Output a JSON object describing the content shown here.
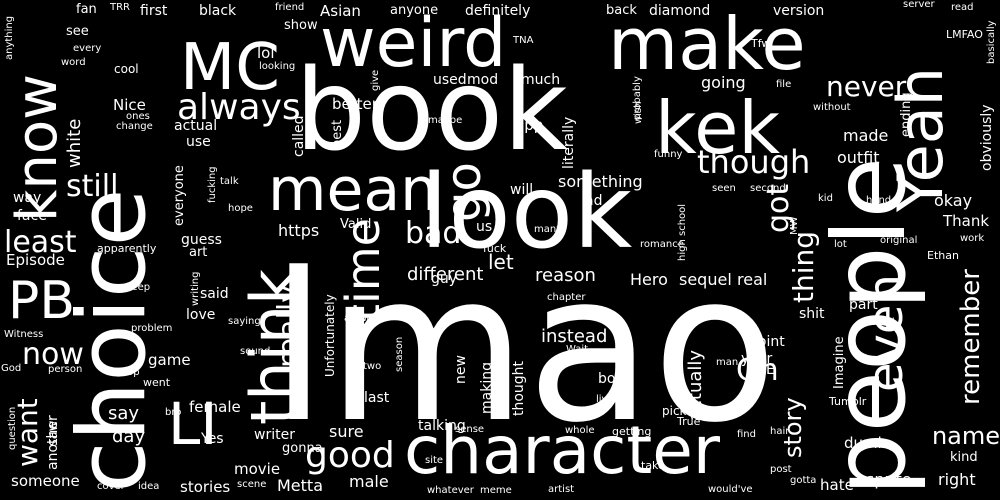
{
  "cloud": {
    "background": "#000000",
    "text_color": "#ffffff",
    "words": [
      {
        "text": "lmao"
      },
      {
        "text": "book"
      },
      {
        "text": "look"
      },
      {
        "text": "people"
      },
      {
        "text": "choice"
      },
      {
        "text": "make"
      },
      {
        "text": "weird"
      },
      {
        "text": "MC"
      },
      {
        "text": "kek"
      },
      {
        "text": "Yeah"
      },
      {
        "text": "mean"
      },
      {
        "text": "think"
      },
      {
        "text": "know"
      },
      {
        "text": "character"
      },
      {
        "text": "even"
      },
      {
        "text": "LI"
      },
      {
        "text": "PB"
      },
      {
        "text": "time"
      },
      {
        "text": "always"
      },
      {
        "text": "though"
      },
      {
        "text": "go"
      },
      {
        "text": "never"
      },
      {
        "text": "got"
      },
      {
        "text": "really"
      },
      {
        "text": "good"
      },
      {
        "text": "still"
      },
      {
        "text": "least"
      },
      {
        "text": "now"
      },
      {
        "text": "want"
      },
      {
        "text": "thing"
      },
      {
        "text": "remember"
      },
      {
        "text": "bad"
      },
      {
        "text": "name"
      },
      {
        "text": "Oh"
      },
      {
        "text": "story"
      },
      {
        "text": "white"
      },
      {
        "text": "let"
      },
      {
        "text": "different"
      },
      {
        "text": "reason"
      },
      {
        "text": "instead"
      },
      {
        "text": "actually"
      },
      {
        "text": "Hero"
      },
      {
        "text": "sequel"
      },
      {
        "text": "real"
      },
      {
        "text": "something"
      },
      {
        "text": "made"
      },
      {
        "text": "going"
      },
      {
        "text": "say"
      },
      {
        "text": "day"
      },
      {
        "text": "sure"
      },
      {
        "text": "male"
      },
      {
        "text": "Metta"
      },
      {
        "text": "female"
      },
      {
        "text": "movie"
      },
      {
        "text": "stories"
      },
      {
        "text": "someone"
      },
      {
        "text": "fan"
      },
      {
        "text": "first"
      },
      {
        "text": "black"
      },
      {
        "text": "back"
      },
      {
        "text": "diamond"
      },
      {
        "text": "version"
      },
      {
        "text": "definitely"
      },
      {
        "text": "anyone"
      },
      {
        "text": "Asian"
      },
      {
        "text": "show"
      },
      {
        "text": "lol"
      },
      {
        "text": "used"
      },
      {
        "text": "mod"
      },
      {
        "text": "much"
      },
      {
        "text": "better"
      },
      {
        "text": "best"
      },
      {
        "text": "app"
      },
      {
        "text": "literally"
      },
      {
        "text": "called"
      },
      {
        "text": "use"
      },
      {
        "text": "actual"
      },
      {
        "text": "Nice"
      },
      {
        "text": "outfit"
      },
      {
        "text": "obviously"
      },
      {
        "text": "ending"
      },
      {
        "text": "probably"
      },
      {
        "text": "okay"
      },
      {
        "text": "Thank"
      },
      {
        "text": "way"
      },
      {
        "text": "face"
      },
      {
        "text": "Episode"
      },
      {
        "text": "guess"
      },
      {
        "text": "art"
      },
      {
        "text": "said"
      },
      {
        "text": "love"
      },
      {
        "text": "https"
      },
      {
        "text": "Valid"
      },
      {
        "text": "guy"
      },
      {
        "text": "us"
      },
      {
        "text": "will"
      },
      {
        "text": "ad"
      },
      {
        "text": "part"
      },
      {
        "text": "point"
      },
      {
        "text": "year"
      },
      {
        "text": "Imagine"
      },
      {
        "text": "shit"
      },
      {
        "text": "boy"
      },
      {
        "text": "talking"
      },
      {
        "text": "new"
      },
      {
        "text": "making"
      },
      {
        "text": "thought"
      },
      {
        "text": "last"
      },
      {
        "text": "writer"
      },
      {
        "text": "gonna"
      },
      {
        "text": "Yes"
      },
      {
        "text": "game"
      },
      {
        "text": "dumb"
      },
      {
        "text": "kind"
      },
      {
        "text": "hate"
      },
      {
        "text": "sprite"
      },
      {
        "text": "right"
      },
      {
        "text": "everyone"
      },
      {
        "text": "E"
      },
      {
        "text": "Unfortunately"
      },
      {
        "text": "TRR"
      },
      {
        "text": "friend"
      },
      {
        "text": "see"
      },
      {
        "text": "every"
      },
      {
        "text": "word"
      },
      {
        "text": "anything"
      },
      {
        "text": "TNA"
      },
      {
        "text": "Tfw"
      },
      {
        "text": "server"
      },
      {
        "text": "read"
      },
      {
        "text": "LMFAO"
      },
      {
        "text": "basically"
      },
      {
        "text": "file"
      },
      {
        "text": "without"
      },
      {
        "text": "romance"
      },
      {
        "text": "give"
      },
      {
        "text": "wish"
      },
      {
        "text": "maybe"
      },
      {
        "text": "funny"
      },
      {
        "text": "cool"
      },
      {
        "text": "ones"
      },
      {
        "text": "change"
      },
      {
        "text": "looking"
      },
      {
        "text": "talk"
      },
      {
        "text": "fucking"
      },
      {
        "text": "hope"
      },
      {
        "text": "seen"
      },
      {
        "text": "second"
      },
      {
        "text": "kid"
      },
      {
        "text": "hand"
      },
      {
        "text": "apparently"
      },
      {
        "text": "fuck"
      },
      {
        "text": "many"
      },
      {
        "text": "high school"
      },
      {
        "text": "MW"
      },
      {
        "text": "original"
      },
      {
        "text": "lot"
      },
      {
        "text": "work"
      },
      {
        "text": "Ethan"
      },
      {
        "text": "keep"
      },
      {
        "text": "writing"
      },
      {
        "text": "problem"
      },
      {
        "text": "saying"
      },
      {
        "text": "anyway"
      },
      {
        "text": "chapter"
      },
      {
        "text": "Witness"
      },
      {
        "text": "feel"
      },
      {
        "text": "sound"
      },
      {
        "text": "person"
      },
      {
        "text": "God"
      },
      {
        "text": "stop"
      },
      {
        "text": "went"
      },
      {
        "text": "two"
      },
      {
        "text": "season"
      },
      {
        "text": "Wait"
      },
      {
        "text": "man"
      },
      {
        "text": "question"
      },
      {
        "text": "saw"
      },
      {
        "text": "another"
      },
      {
        "text": "bro"
      },
      {
        "text": "live"
      },
      {
        "text": "pick"
      },
      {
        "text": "True"
      },
      {
        "text": "Tumblr"
      },
      {
        "text": "sense"
      },
      {
        "text": "whole"
      },
      {
        "text": "getting"
      },
      {
        "text": "hair"
      },
      {
        "text": "find"
      },
      {
        "text": "site"
      },
      {
        "text": "post"
      },
      {
        "text": "take"
      },
      {
        "text": "cover"
      },
      {
        "text": "idea"
      },
      {
        "text": "scene"
      },
      {
        "text": "whatever"
      },
      {
        "text": "meme"
      },
      {
        "text": "artist"
      },
      {
        "text": "would've"
      },
      {
        "text": "gotta"
      }
    ]
  }
}
